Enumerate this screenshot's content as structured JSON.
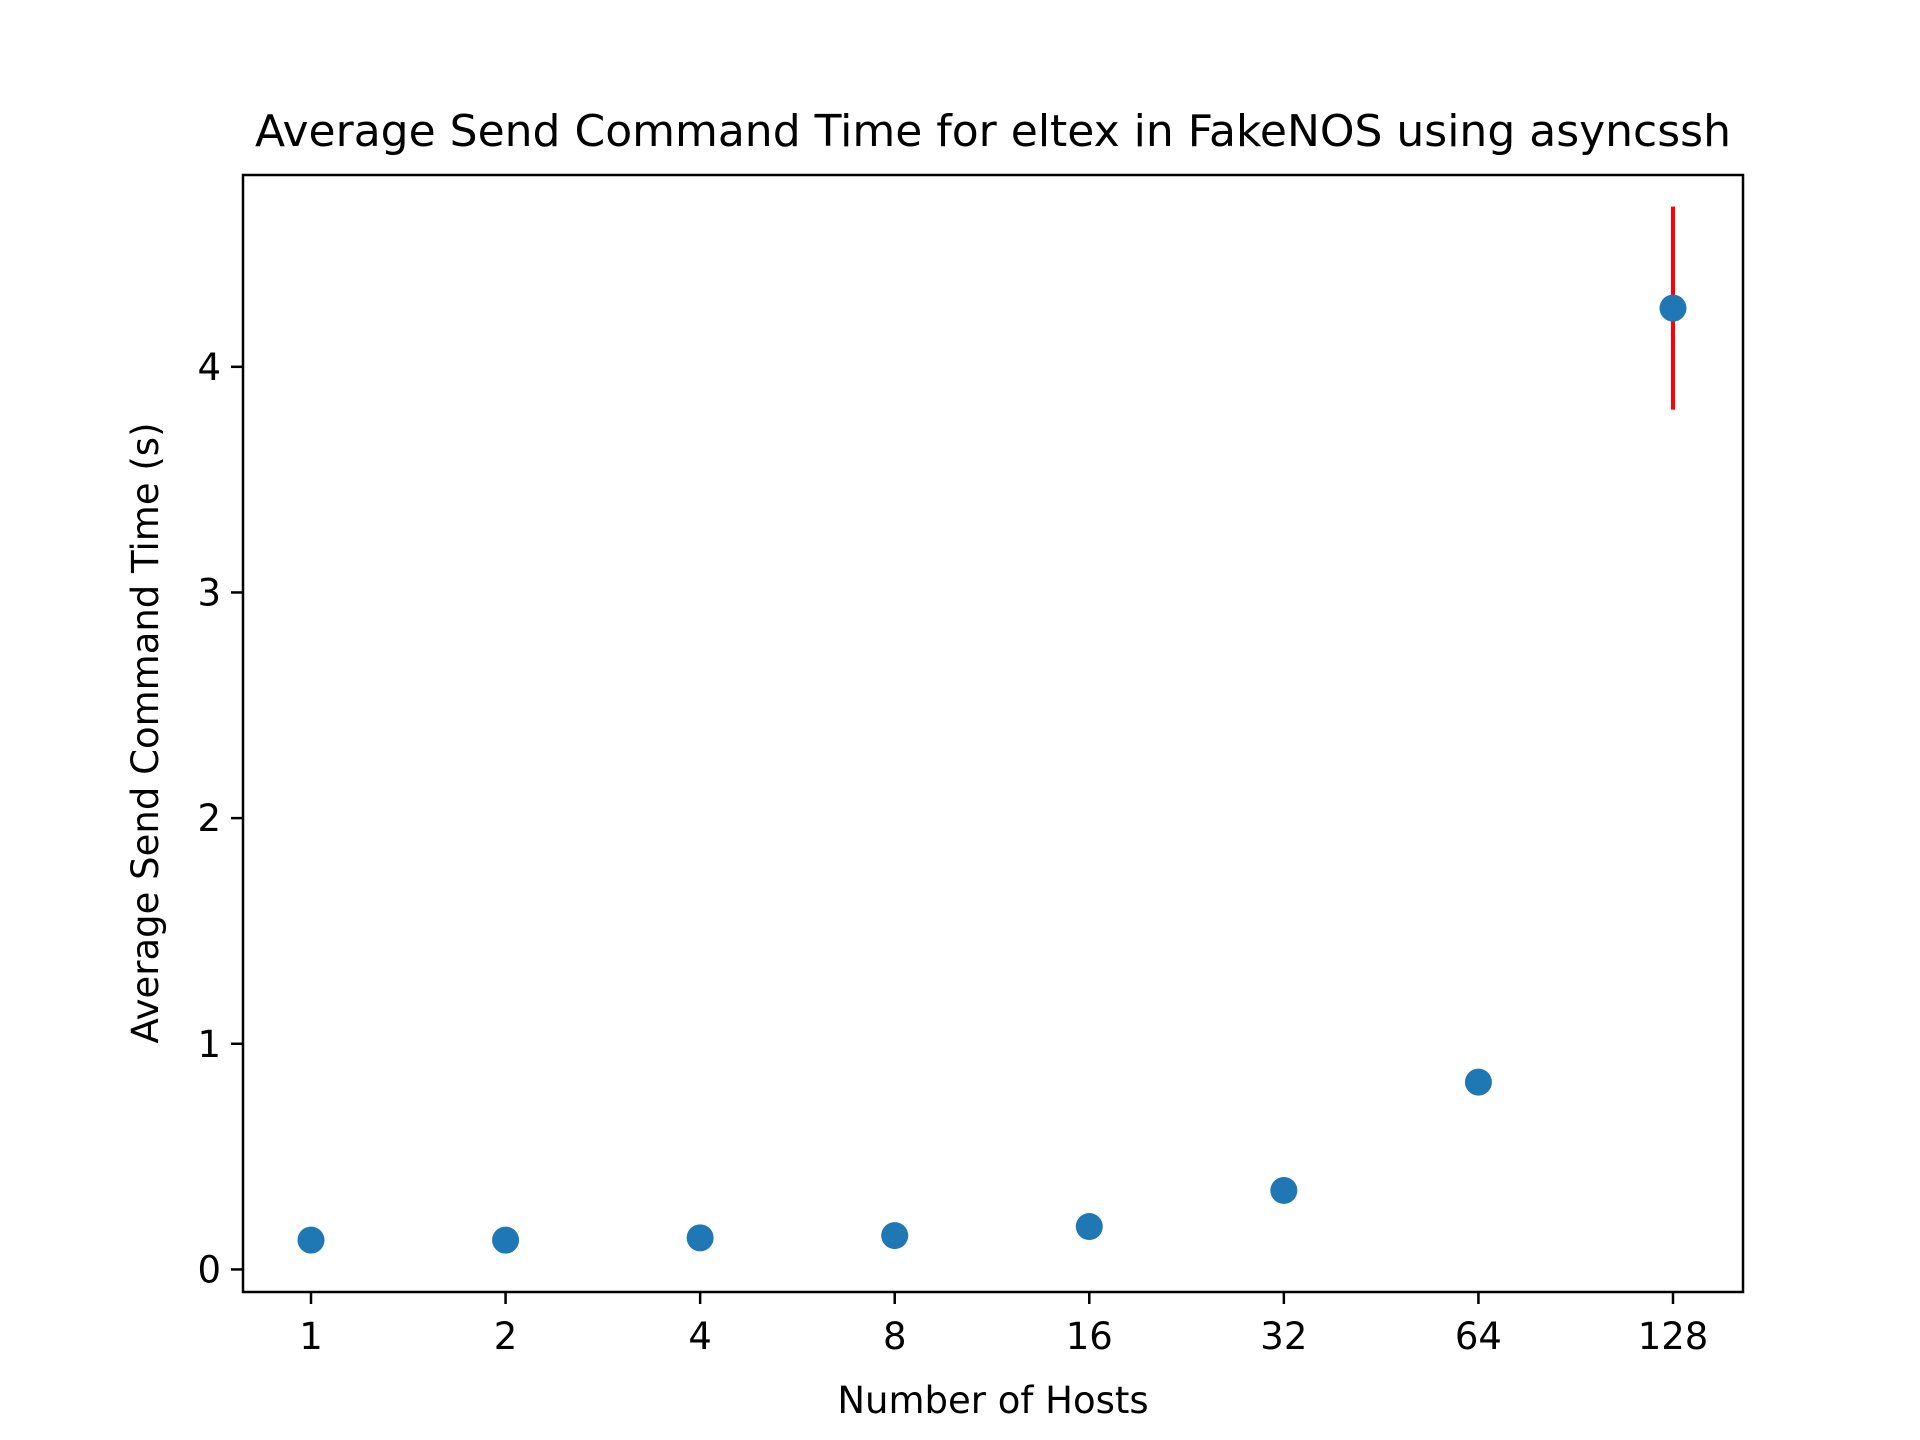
{
  "chart_data": {
    "type": "scatter",
    "title": "Average Send Command Time for eltex in FakeNOS using asyncssh",
    "xlabel": "Number of Hosts",
    "ylabel": "Average Send Command Time (s)",
    "x_scale": "log2",
    "x_ticks": [
      "1",
      "2",
      "4",
      "8",
      "16",
      "32",
      "64",
      "128"
    ],
    "y_ticks": [
      "0",
      "1",
      "2",
      "3",
      "4"
    ],
    "ylim": [
      -0.1,
      4.85
    ],
    "grid": false,
    "series": [
      {
        "x": [
          1,
          2,
          4,
          8,
          16,
          32,
          64,
          128
        ],
        "y": [
          0.13,
          0.13,
          0.14,
          0.15,
          0.19,
          0.35,
          0.83,
          4.26
        ],
        "yerr": [
          0,
          0,
          0,
          0,
          0,
          0,
          0,
          0.45
        ],
        "color": "#1f77b4",
        "error_color": "#ff0000"
      }
    ]
  }
}
